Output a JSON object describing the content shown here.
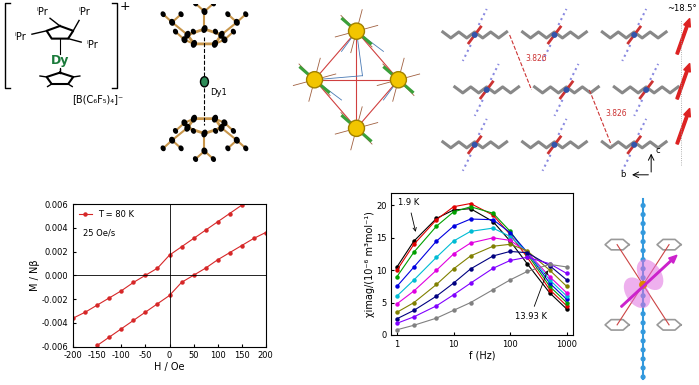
{
  "chart_data": [
    {
      "type": "line",
      "x_label": "H / Oe",
      "y_label": "M / Nβ",
      "xlim": [
        -200,
        200
      ],
      "ylim": [
        -0.006,
        0.006
      ],
      "xticks": [
        -200,
        -150,
        -100,
        -50,
        0,
        50,
        100,
        150,
        200
      ],
      "yticks": [
        -0.006,
        -0.004,
        -0.002,
        {
          "value": 0,
          "label": "0.000"
        },
        0.002,
        0.004,
        0.006
      ],
      "grid": false,
      "legend": "upper left",
      "annotations": [
        "25 Oe/s"
      ],
      "series": [
        {
          "name": "T = 80 K",
          "color": "#d62728",
          "marker": "circle",
          "line_style": "solid",
          "x": [
            -200,
            -175,
            -150,
            -125,
            -100,
            -75,
            -50,
            -25,
            0,
            25,
            50,
            75,
            100,
            125,
            150,
            null,
            -150,
            -125,
            -100,
            -75,
            -50,
            -25,
            0,
            25,
            50,
            75,
            100,
            125,
            150,
            175,
            200
          ],
          "values": [
            -0.0036,
            -0.0031,
            -0.0025,
            -0.0019,
            -0.0013,
            -0.0006,
            0.0,
            0.0006,
            0.0017,
            0.0024,
            0.0031,
            0.0038,
            0.0045,
            0.0052,
            0.0059,
            null,
            -0.0059,
            -0.0052,
            -0.0045,
            -0.0038,
            -0.0031,
            -0.0024,
            -0.0017,
            -0.0006,
            0.0,
            0.0006,
            0.0013,
            0.0019,
            0.0025,
            0.0031,
            0.0036
          ]
        }
      ]
    },
    {
      "type": "line",
      "x_label": "f (Hz)",
      "y_label": "χimag/(10⁻⁶ m³mol⁻¹)",
      "log": "x",
      "xlim": [
        0.8,
        1300
      ],
      "ylim": [
        0,
        22
      ],
      "xticks": [
        1,
        10,
        100,
        1000
      ],
      "yticks": [
        0,
        5,
        10,
        15,
        20
      ],
      "grid": false,
      "annotations": [
        "1.9 K",
        "13.93 K"
      ],
      "x": [
        1,
        2,
        5,
        10,
        20,
        50,
        100,
        200,
        500,
        1000
      ],
      "series": [
        {
          "color": "#000000",
          "marker": "circle",
          "line_style": "solid",
          "values": [
            10.5,
            14.5,
            18.0,
            19.3,
            19.5,
            17.5,
            14.5,
            11.0,
            6.5,
            4.0
          ]
        },
        {
          "color": "#e00000",
          "marker": "circle",
          "line_style": "solid",
          "values": [
            10.0,
            14.0,
            17.8,
            19.8,
            20.3,
            18.5,
            15.5,
            12.0,
            7.0,
            4.5
          ]
        },
        {
          "color": "#00a000",
          "marker": "circle",
          "line_style": "solid",
          "values": [
            9.0,
            12.8,
            16.8,
            19.0,
            19.8,
            18.8,
            16.0,
            12.5,
            7.5,
            5.0
          ]
        },
        {
          "color": "#0000e0",
          "marker": "circle",
          "line_style": "solid",
          "values": [
            7.5,
            10.5,
            14.5,
            16.8,
            17.9,
            17.8,
            15.8,
            12.8,
            8.0,
            5.5
          ]
        },
        {
          "color": "#00bcd4",
          "marker": "circle",
          "line_style": "solid",
          "values": [
            6.0,
            8.5,
            12.0,
            14.5,
            16.0,
            16.5,
            15.2,
            12.8,
            8.5,
            6.0
          ]
        },
        {
          "color": "#e000e0",
          "marker": "circle",
          "line_style": "solid",
          "values": [
            4.8,
            6.8,
            10.0,
            12.5,
            14.2,
            15.0,
            14.6,
            12.8,
            9.0,
            6.5
          ]
        },
        {
          "color": "#808000",
          "marker": "circle",
          "line_style": "solid",
          "values": [
            3.5,
            5.0,
            7.8,
            10.2,
            12.2,
            13.7,
            14.0,
            13.0,
            10.0,
            7.5
          ]
        },
        {
          "color": "#000080",
          "marker": "circle",
          "line_style": "solid",
          "values": [
            2.5,
            3.8,
            6.0,
            8.0,
            10.2,
            12.2,
            12.9,
            12.7,
            10.7,
            8.5
          ]
        },
        {
          "color": "#8000ff",
          "marker": "circle",
          "line_style": "solid",
          "values": [
            1.8,
            2.8,
            4.5,
            6.2,
            8.0,
            10.3,
            11.5,
            12.0,
            11.0,
            9.5
          ]
        },
        {
          "color": "#808080",
          "marker": "circle",
          "line_style": "solid",
          "values": [
            0.8,
            1.5,
            2.6,
            3.8,
            5.0,
            7.0,
            8.5,
            9.8,
            10.9,
            10.5
          ]
        }
      ]
    }
  ],
  "diagrams": {
    "cation_anion_scheme": {
      "substituents": [
        "ⁱPr",
        "ⁱPr",
        "ⁱPr",
        "ⁱPr"
      ],
      "metal": "Dy",
      "charge": "+",
      "anion": "[B(C₆F₅)₄]⁻"
    },
    "crystal_structure": {
      "atom_label": "Dy1"
    },
    "packing": {
      "distances": [
        "3.826",
        "3.826"
      ],
      "axes": [
        "b",
        "c"
      ],
      "angle": "~18.5°"
    }
  }
}
